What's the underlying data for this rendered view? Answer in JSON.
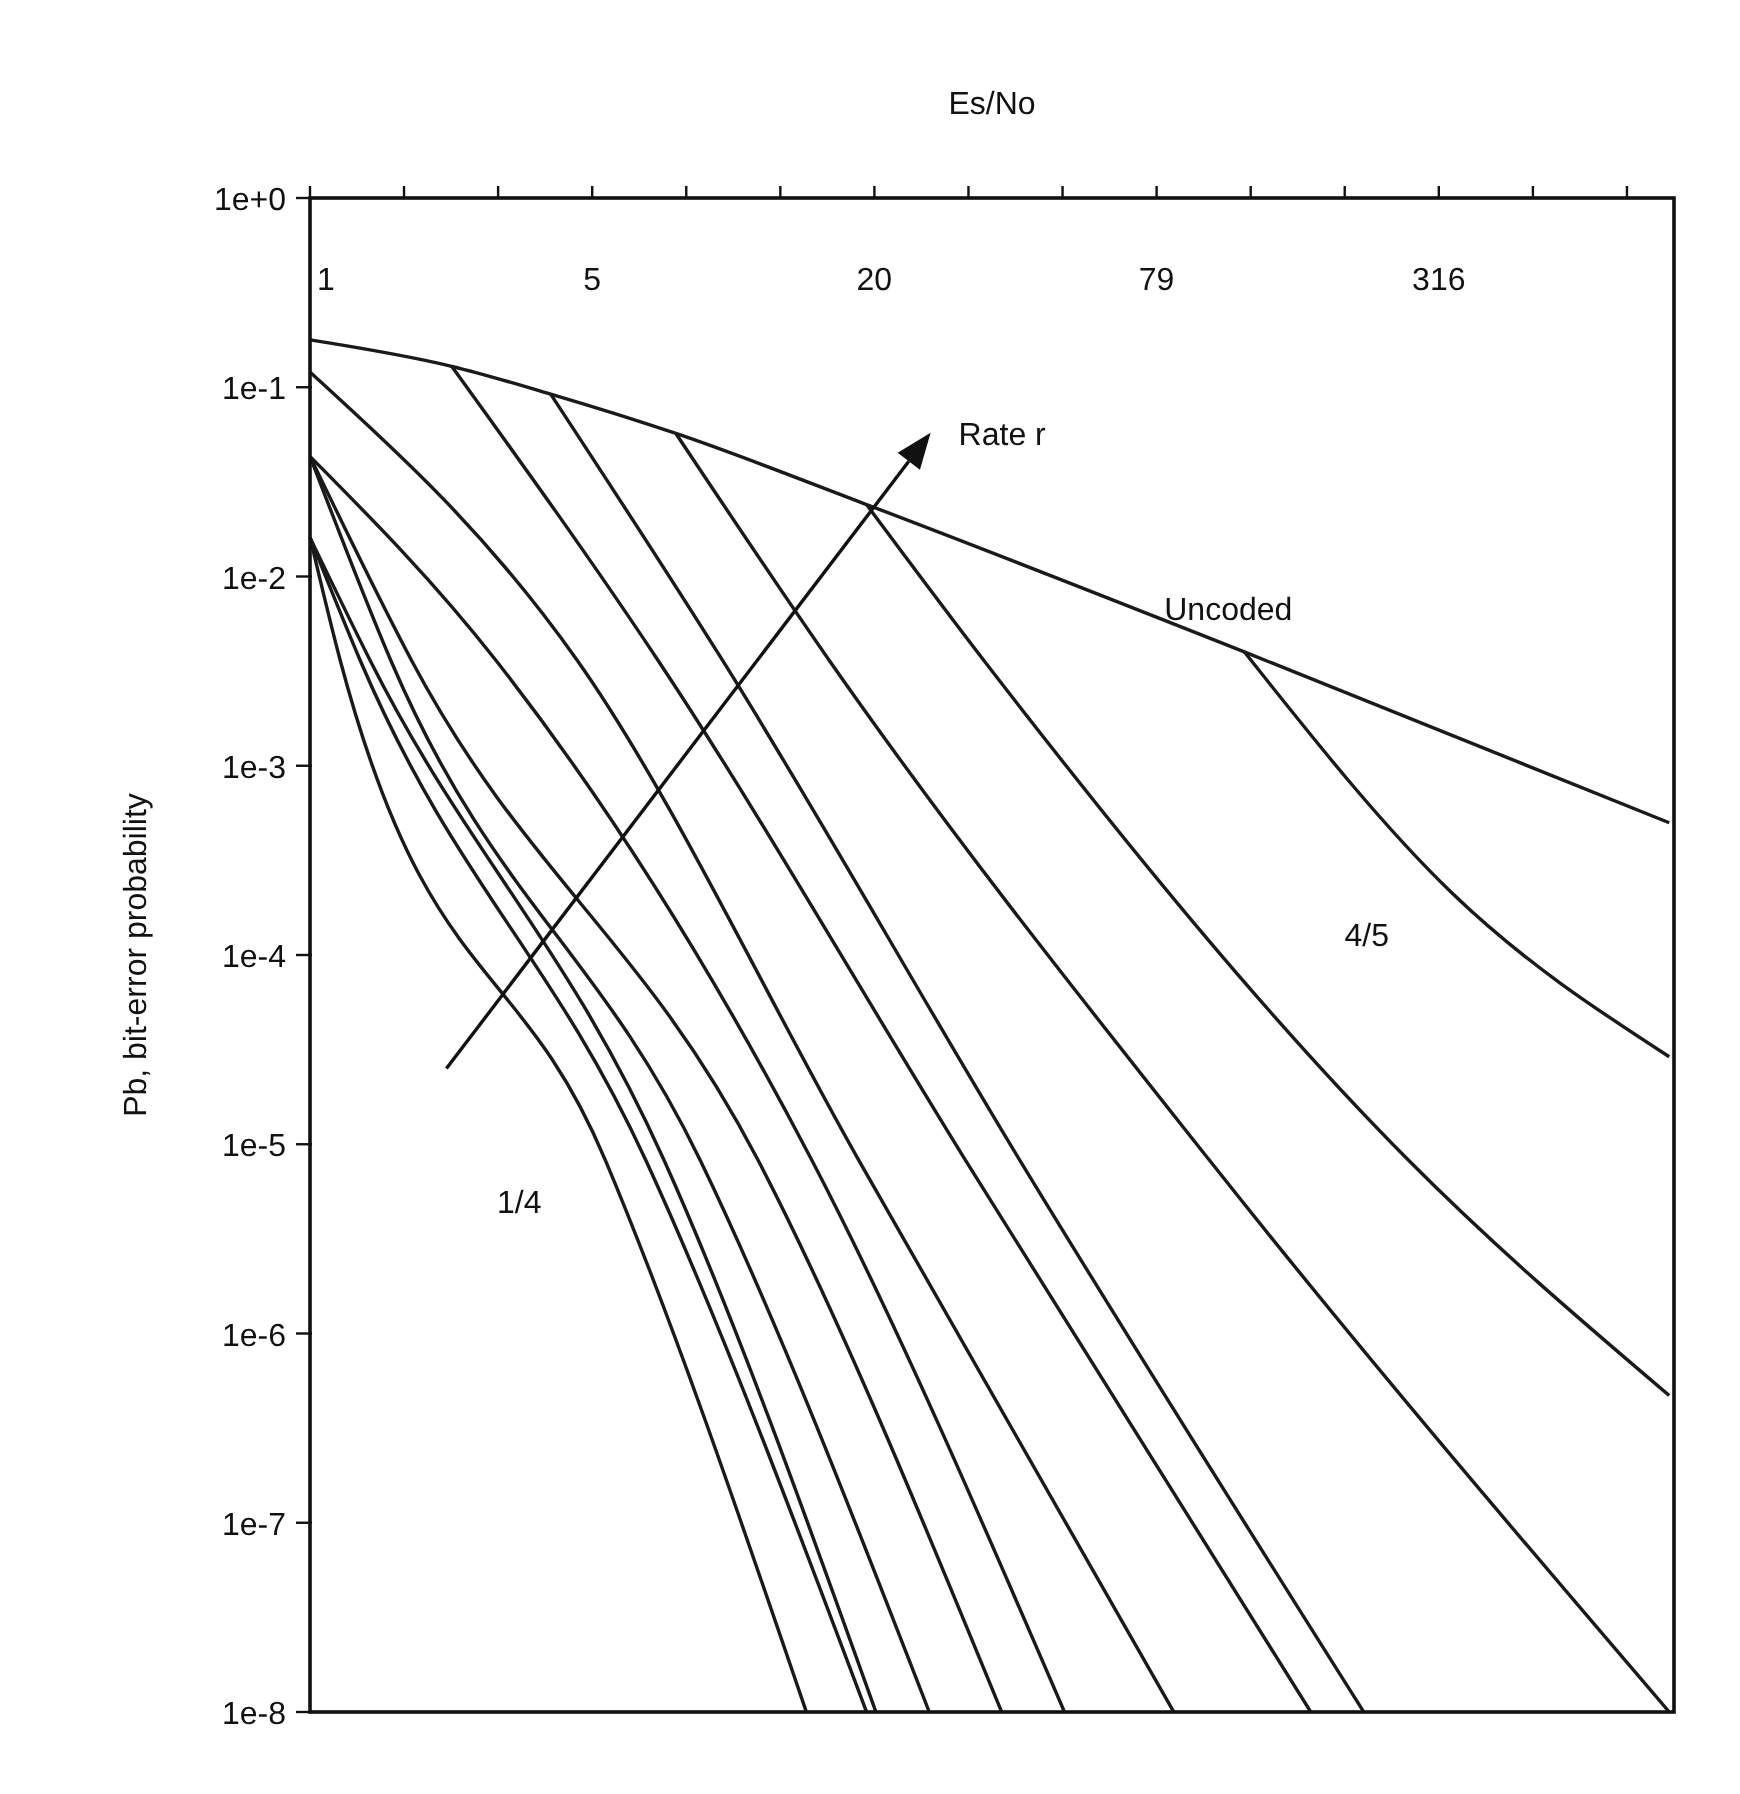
{
  "chart_data": {
    "type": "line",
    "xlabel": "Es/No",
    "ylabel": "Pb, bit-error probability",
    "log": "xy",
    "grid": false,
    "marker": "none",
    "line_style": "solid",
    "xlim": [
      1.259,
      1000
    ],
    "ylim": [
      1e-08,
      1
    ],
    "xticks": [
      {
        "value": 1.259,
        "label": "1"
      },
      {
        "value": 1.995,
        "label": null
      },
      {
        "value": 3.162,
        "label": null
      },
      {
        "value": 5.012,
        "label": "5"
      },
      {
        "value": 7.943,
        "label": null
      },
      {
        "value": 12.59,
        "label": null
      },
      {
        "value": 19.95,
        "label": "20"
      },
      {
        "value": 31.62,
        "label": null
      },
      {
        "value": 50.12,
        "label": null
      },
      {
        "value": 79.43,
        "label": "79"
      },
      {
        "value": 125.9,
        "label": null
      },
      {
        "value": 199.5,
        "label": null
      },
      {
        "value": 316.2,
        "label": "316"
      },
      {
        "value": 501.2,
        "label": null
      },
      {
        "value": 794.3,
        "label": null
      }
    ],
    "yticks": [
      {
        "value": 1,
        "label": "1e+0"
      },
      {
        "value": 0.1,
        "label": "1e-1"
      },
      {
        "value": 0.01,
        "label": "1e-2"
      },
      {
        "value": 0.001,
        "label": "1e-3"
      },
      {
        "value": 0.0001,
        "label": "1e-4"
      },
      {
        "value": 1e-05,
        "label": "1e-5"
      },
      {
        "value": 1e-06,
        "label": "1e-6"
      },
      {
        "value": 1e-07,
        "label": "1e-7"
      },
      {
        "value": 1e-08,
        "label": "1e-8"
      }
    ],
    "annotations": [
      "Rate r"
    ],
    "series": [
      {
        "name": "Uncoded",
        "color": "#1a1a1a",
        "x": [
          1.26,
          2.52,
          4.09,
          7.55,
          19.2,
          122,
          977
        ],
        "values": [
          0.178,
          0.129,
          0.092,
          0.057,
          0.024,
          0.004,
          0.0005
        ]
      },
      {
        "name": "1/4",
        "color": "#1a1a1a",
        "x": [
          1.26,
          1.46,
          5.35,
          14.3
        ],
        "values": [
          0.016,
          0.0036,
          8.2e-06,
          1e-08
        ]
      },
      {
        "color": "#1a1a1a",
        "x": [
          1.26,
          1.61,
          6.52,
          19.2
        ],
        "values": [
          0.016,
          0.0036,
          8.2e-06,
          1e-08
        ]
      },
      {
        "color": "#1a1a1a",
        "x": [
          1.26,
          1.69,
          7.13,
          20.1
        ],
        "values": [
          0.016,
          0.0036,
          8.2e-06,
          1e-08
        ]
      },
      {
        "color": "#1a1a1a",
        "x": [
          1.26,
          1.87,
          8.51,
          26.1
        ],
        "values": [
          0.043,
          0.0036,
          8.2e-06,
          1e-08
        ]
      },
      {
        "color": "#1a1a1a",
        "x": [
          1.26,
          2.07,
          11.3,
          37.2
        ],
        "values": [
          0.043,
          0.0036,
          8.2e-06,
          1e-08
        ]
      },
      {
        "color": "#1a1a1a",
        "x": [
          1.26,
          3.13,
          14.7,
          50.6
        ],
        "values": [
          0.043,
          0.0036,
          8.2e-06,
          1e-08
        ]
      },
      {
        "color": "#1a1a1a",
        "x": [
          1.26,
          4.66,
          18.5,
          86.4
        ],
        "values": [
          0.12,
          0.0036,
          8.2e-06,
          1e-08
        ]
      },
      {
        "color": "#1a1a1a",
        "x": [
          2.52,
          6.92,
          31.2,
          169
        ],
        "values": [
          0.129,
          0.0036,
          8.2e-06,
          1e-08
        ]
      },
      {
        "color": "#1a1a1a",
        "x": [
          4.09,
          9.49,
          40.7,
          219
        ],
        "values": [
          0.092,
          0.0036,
          8.2e-06,
          1e-08
        ]
      },
      {
        "color": "#1a1a1a",
        "x": [
          7.55,
          16,
          103,
          977
        ],
        "values": [
          0.057,
          0.0036,
          8.2e-06,
          1e-08
        ]
      },
      {
        "color": "#1a1a1a",
        "x": [
          19.2,
          34.1,
          273,
          977
        ],
        "values": [
          0.024,
          0.0036,
          8.2e-06,
          4.7e-07
        ]
      },
      {
        "name": "4/5",
        "color": "#1a1a1a",
        "x": [
          122,
          339,
          977
        ],
        "values": [
          0.004,
          0.00021,
          2.9e-05
        ]
      }
    ]
  }
}
